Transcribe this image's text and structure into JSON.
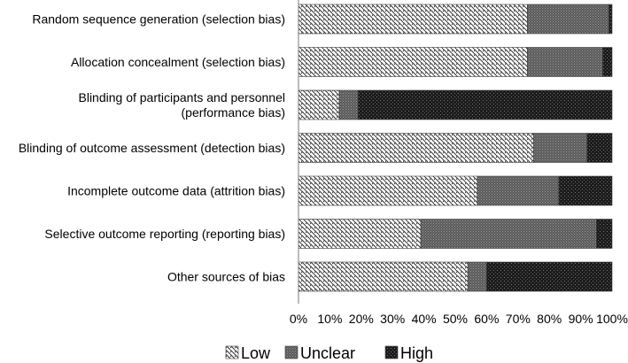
{
  "chart_data": {
    "type": "bar",
    "orientation": "horizontal",
    "stacked": true,
    "categories": [
      "Random sequence generation (selection bias)",
      "Allocation concealment (selection bias)",
      "Blinding of participants and personnel (performance bias)",
      "Blinding of outcome assessment (detection bias)",
      "Incomplete outcome data (attrition bias)",
      "Selective outcome reporting (reporting bias)",
      "Other sources of bias"
    ],
    "category_lines": [
      [
        "Random sequence generation (selection bias)"
      ],
      [
        "Allocation concealment (selection bias)"
      ],
      [
        "Blinding of participants and personnel",
        "(performance bias)"
      ],
      [
        "Blinding of outcome assessment (detection bias)"
      ],
      [
        "Incomplete outcome data (attrition bias)"
      ],
      [
        "Selective outcome reporting (reporting bias)"
      ],
      [
        "Other sources of bias"
      ]
    ],
    "series": [
      {
        "name": "Low",
        "values": [
          73,
          73,
          13,
          75,
          57,
          39,
          54
        ]
      },
      {
        "name": "Unclear",
        "values": [
          26,
          24,
          6,
          17,
          26,
          56,
          6
        ]
      },
      {
        "name": "High",
        "values": [
          1,
          3,
          81,
          8,
          17,
          5,
          40
        ]
      }
    ],
    "xlim": [
      0,
      100
    ],
    "x_ticks": [
      "0%",
      "10%",
      "20%",
      "30%",
      "40%",
      "50%",
      "60%",
      "70%",
      "80%",
      "90%",
      "100%"
    ],
    "legend_position": "bottom",
    "grid": false,
    "title": "",
    "xlabel": "",
    "ylabel": ""
  }
}
